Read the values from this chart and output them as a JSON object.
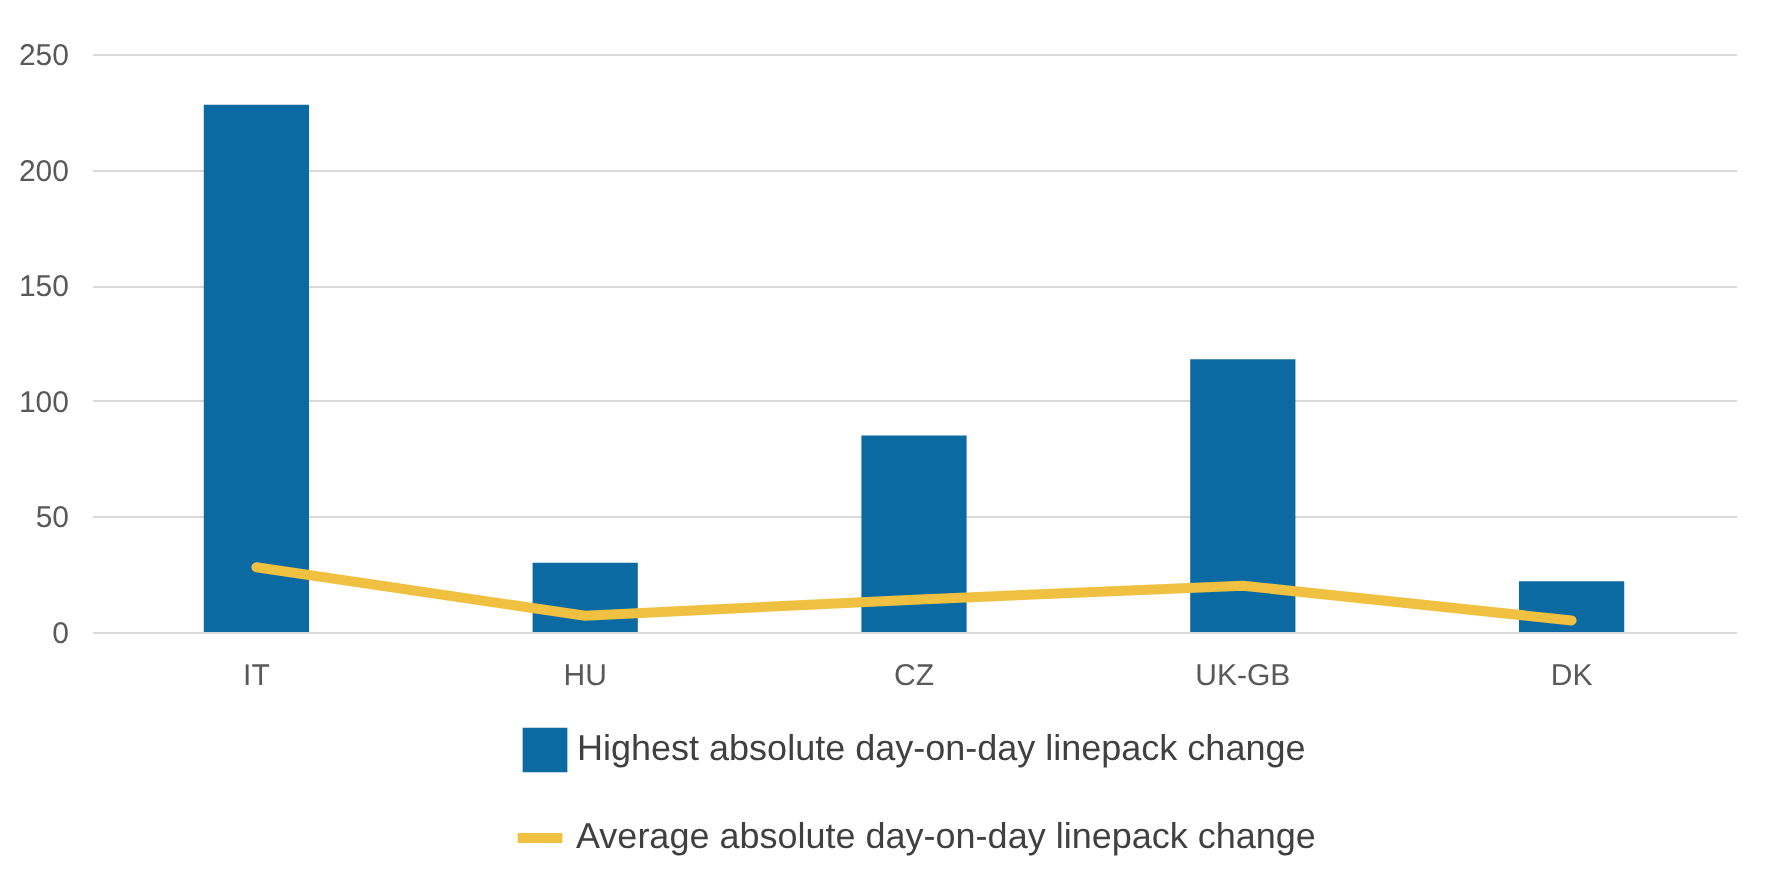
{
  "chart_data": {
    "type": "bar",
    "categories": [
      "IT",
      "HU",
      "CZ",
      "UK-GB",
      "DK"
    ],
    "series": [
      {
        "name": "Highest absolute day-on-day linepack change",
        "color": "#0a6aa1",
        "values": [
          228,
          30,
          85,
          118,
          22
        ]
      },
      {
        "name": "Average absolute day-on-day linepack change",
        "type": "line",
        "color": "#f0c040",
        "values": [
          28,
          7,
          14,
          20,
          5
        ]
      }
    ],
    "ylim": [
      0,
      250
    ],
    "yticks": [
      0,
      50,
      100,
      150,
      200,
      250
    ],
    "grid": "y",
    "legend": "bottom"
  }
}
